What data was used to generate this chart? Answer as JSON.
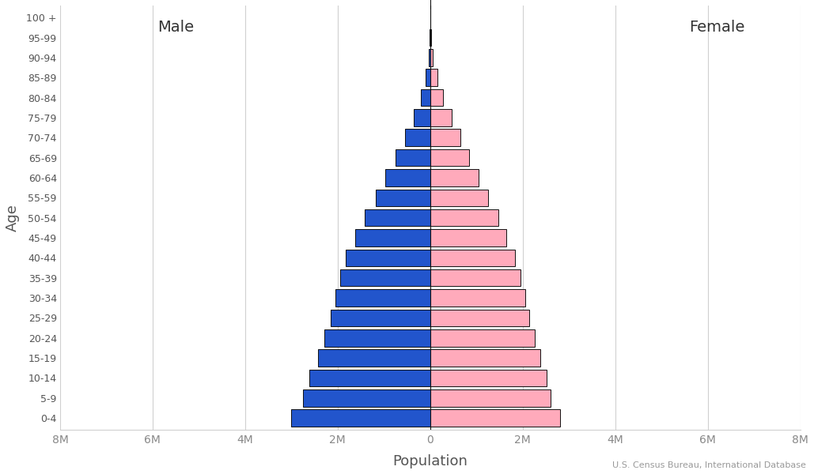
{
  "age_groups": [
    "0-4",
    "5-9",
    "10-14",
    "15-19",
    "20-24",
    "25-29",
    "30-34",
    "35-39",
    "40-44",
    "45-49",
    "50-54",
    "55-59",
    "60-64",
    "65-69",
    "70-74",
    "75-79",
    "80-84",
    "85-89",
    "90-94",
    "95-99",
    "100 +"
  ],
  "male": [
    3.0,
    2.75,
    2.62,
    2.42,
    2.28,
    2.15,
    2.05,
    1.95,
    1.82,
    1.62,
    1.42,
    1.18,
    0.97,
    0.75,
    0.55,
    0.36,
    0.2,
    0.1,
    0.035,
    0.01,
    0.002
  ],
  "female": [
    2.8,
    2.6,
    2.52,
    2.38,
    2.26,
    2.14,
    2.05,
    1.95,
    1.83,
    1.65,
    1.48,
    1.25,
    1.05,
    0.85,
    0.65,
    0.46,
    0.28,
    0.15,
    0.06,
    0.018,
    0.004
  ],
  "male_color": "#2255CC",
  "female_color": "#FFAABB",
  "edge_color": "#111111",
  "xlabel": "Population",
  "ylabel": "Age",
  "xlim": [
    -8,
    8
  ],
  "xticks": [
    -8,
    -6,
    -4,
    -2,
    0,
    2,
    4,
    6,
    8
  ],
  "xtick_labels": [
    "8M",
    "6M",
    "4M",
    "2M",
    "0",
    "2M",
    "4M",
    "6M",
    "8M"
  ],
  "male_label": "Male",
  "female_label": "Female",
  "source_text": "U.S. Census Bureau, International Database",
  "grid_color": "#d0d0d0",
  "bar_height": 0.85,
  "edgewidth": 0.7,
  "bg_color": "#ffffff"
}
